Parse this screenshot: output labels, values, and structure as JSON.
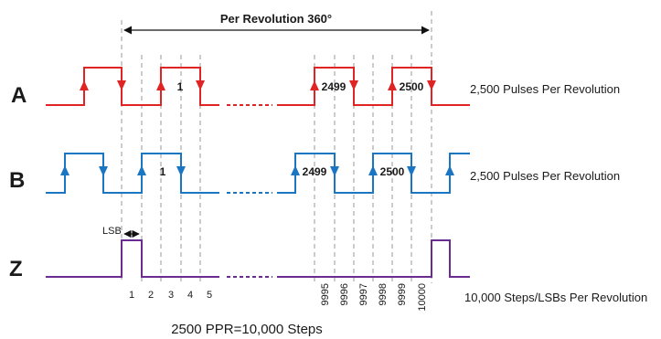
{
  "title": "Per Revolution 360°",
  "channels": {
    "a": {
      "label": "A",
      "description": "2,500 Pulses Per Revolution",
      "color": "#e02424"
    },
    "b": {
      "label": "B",
      "description": "2,500 Pulses Per Revolution",
      "color": "#1a75c2"
    },
    "z": {
      "label": "Z",
      "description": "10,000 Steps/LSBs Per Revolution",
      "color": "#6a2c8e"
    }
  },
  "pulse_labels": {
    "a_first": "1",
    "a_second_last": "2499",
    "a_last": "2500",
    "b_first": "1",
    "b_second_last": "2499",
    "b_last": "2500"
  },
  "lsb_label": "LSB",
  "step_labels_start": [
    "1",
    "2",
    "3",
    "4",
    "5"
  ],
  "step_labels_end": [
    "9995",
    "9996",
    "9997",
    "9998",
    "9999",
    "10000"
  ],
  "footer": "2500 PPR=10,000 Steps"
}
